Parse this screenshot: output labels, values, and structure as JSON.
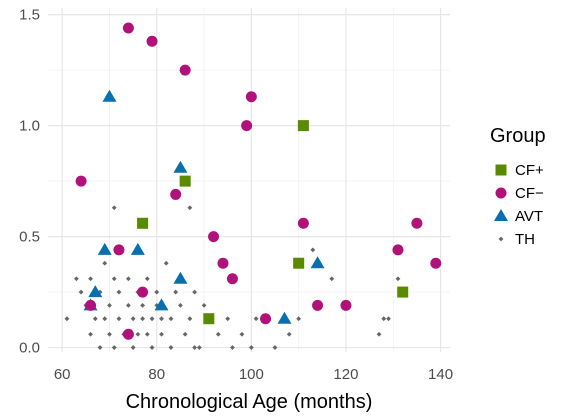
{
  "chart_data": {
    "type": "scatter",
    "xlabel": "Chronological Age (months)",
    "ylabel": "",
    "xlim": [
      57,
      142
    ],
    "ylim": [
      -0.02,
      1.53
    ],
    "x_ticks": [
      60,
      80,
      100,
      120,
      140
    ],
    "y_ticks": [
      0.0,
      0.5,
      1.0,
      1.5
    ],
    "x_tick_labels": [
      "60",
      "80",
      "100",
      "120",
      "140"
    ],
    "y_tick_labels": [
      "0.0",
      "0.5",
      "1.0",
      "1.5"
    ],
    "grid": true,
    "legend": {
      "title": "Group",
      "position": "right"
    },
    "series": [
      {
        "name": "CF+",
        "shape": "square",
        "color": "#5a8a00",
        "points": [
          [
            77,
            0.56
          ],
          [
            86,
            0.75
          ],
          [
            91,
            0.13
          ],
          [
            110,
            0.38
          ],
          [
            111,
            1.0
          ],
          [
            132,
            0.25
          ]
        ]
      },
      {
        "name": "CF−",
        "shape": "circle",
        "color": "#b0127a",
        "points": [
          [
            64,
            0.75
          ],
          [
            66,
            0.19
          ],
          [
            72,
            0.44
          ],
          [
            74,
            1.44
          ],
          [
            74,
            0.06
          ],
          [
            77,
            0.25
          ],
          [
            79,
            1.38
          ],
          [
            84,
            0.69
          ],
          [
            86,
            1.25
          ],
          [
            92,
            0.5
          ],
          [
            94,
            0.38
          ],
          [
            96,
            0.31
          ],
          [
            99,
            1.0
          ],
          [
            100,
            1.13
          ],
          [
            103,
            0.13
          ],
          [
            111,
            0.56
          ],
          [
            114,
            0.19
          ],
          [
            120,
            0.19
          ],
          [
            131,
            0.44
          ],
          [
            135,
            0.56
          ],
          [
            139,
            0.38
          ]
        ]
      },
      {
        "name": "AVT",
        "shape": "triangle",
        "color": "#0a6fae",
        "points": [
          [
            66,
            0.19
          ],
          [
            67,
            0.25
          ],
          [
            69,
            0.44
          ],
          [
            70,
            1.13
          ],
          [
            76,
            0.44
          ],
          [
            81,
            0.19
          ],
          [
            85,
            0.81
          ],
          [
            85,
            0.31
          ],
          [
            107,
            0.13
          ],
          [
            114,
            0.38
          ]
        ]
      },
      {
        "name": "TH",
        "shape": "diamond",
        "color": "#666666",
        "points": [
          [
            61,
            0.13
          ],
          [
            63,
            0.31
          ],
          [
            64,
            0.25
          ],
          [
            65,
            0.19
          ],
          [
            66,
            0.31
          ],
          [
            66,
            0.06
          ],
          [
            67,
            0.13
          ],
          [
            68,
            0.25
          ],
          [
            68,
            0.0
          ],
          [
            69,
            0.38
          ],
          [
            69,
            0.13
          ],
          [
            70,
            0.19
          ],
          [
            70,
            0.06
          ],
          [
            71,
            0.63
          ],
          [
            71,
            0.31
          ],
          [
            71,
            0.0
          ],
          [
            72,
            0.25
          ],
          [
            72,
            0.13
          ],
          [
            73,
            0.06
          ],
          [
            74,
            0.31
          ],
          [
            74,
            0.19
          ],
          [
            75,
            0.13
          ],
          [
            75,
            0.0
          ],
          [
            76,
            0.25
          ],
          [
            76,
            0.06
          ],
          [
            77,
            0.19
          ],
          [
            77,
            0.13
          ],
          [
            78,
            0.31
          ],
          [
            78,
            0.06
          ],
          [
            79,
            0.13
          ],
          [
            79,
            0.0
          ],
          [
            80,
            0.25
          ],
          [
            80,
            0.19
          ],
          [
            81,
            0.06
          ],
          [
            81,
            0.13
          ],
          [
            82,
            0.38
          ],
          [
            83,
            0.0
          ],
          [
            83,
            0.13
          ],
          [
            84,
            0.25
          ],
          [
            85,
            0.19
          ],
          [
            86,
            0.06
          ],
          [
            87,
            0.63
          ],
          [
            87,
            0.13
          ],
          [
            88,
            0.25
          ],
          [
            88,
            0.0
          ],
          [
            89,
            0.0
          ],
          [
            90,
            0.19
          ],
          [
            93,
            0.06
          ],
          [
            95,
            0.13
          ],
          [
            96,
            0.0
          ],
          [
            98,
            0.06
          ],
          [
            100,
            0.0
          ],
          [
            101,
            0.13
          ],
          [
            105,
            0.0
          ],
          [
            108,
            0.06
          ],
          [
            110,
            0.13
          ],
          [
            113,
            0.44
          ],
          [
            117,
            0.31
          ],
          [
            127,
            0.06
          ],
          [
            128,
            0.13
          ],
          [
            129,
            0.13
          ],
          [
            131,
            0.31
          ]
        ]
      }
    ]
  }
}
